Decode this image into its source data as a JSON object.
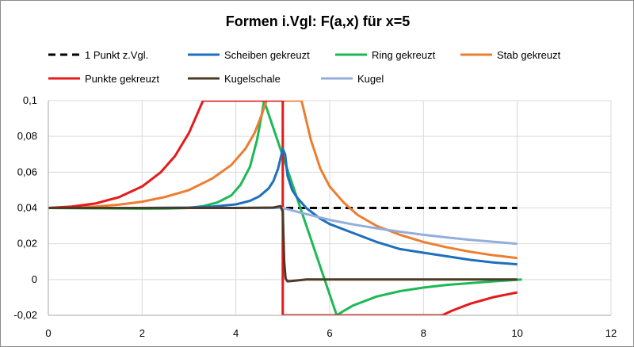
{
  "chart_data": {
    "type": "line",
    "title": "Formen i.Vgl: F(a,x)  für x=5",
    "xlabel": "",
    "ylabel": "",
    "xlim": [
      0,
      12
    ],
    "ylim": [
      -0.02,
      0.1
    ],
    "x_ticks": [
      "0",
      "2",
      "4",
      "6",
      "8",
      "10",
      "12"
    ],
    "y_ticks": [
      "-0,02",
      "0",
      "0,02",
      "0,04",
      "0,06",
      "0,08",
      "0,1"
    ],
    "grid": true,
    "legend": "top, two rows",
    "series": [
      {
        "name": "1 Punkt z.Vgl.",
        "color": "#000000",
        "dash": true,
        "points": [
          [
            0,
            0.04
          ],
          [
            10,
            0.04
          ]
        ]
      },
      {
        "name": "Scheiben gekreuzt",
        "color": "#1f6fbd",
        "dash": false,
        "points": [
          [
            0,
            0.04
          ],
          [
            1,
            0.04
          ],
          [
            2,
            0.04
          ],
          [
            3,
            0.0402
          ],
          [
            3.5,
            0.0408
          ],
          [
            4,
            0.042
          ],
          [
            4.3,
            0.044
          ],
          [
            4.5,
            0.0465
          ],
          [
            4.7,
            0.051
          ],
          [
            4.8,
            0.055
          ],
          [
            4.9,
            0.062
          ],
          [
            5.0,
            0.073
          ],
          [
            5.05,
            0.07
          ],
          [
            5.1,
            0.058
          ],
          [
            5.2,
            0.05
          ],
          [
            5.3,
            0.046
          ],
          [
            5.5,
            0.04
          ],
          [
            5.8,
            0.034
          ],
          [
            6.0,
            0.031
          ],
          [
            6.5,
            0.026
          ],
          [
            7.0,
            0.021
          ],
          [
            7.5,
            0.017
          ],
          [
            8.0,
            0.015
          ],
          [
            8.5,
            0.013
          ],
          [
            9.0,
            0.011
          ],
          [
            9.5,
            0.0095
          ],
          [
            10.0,
            0.0085
          ]
        ]
      },
      {
        "name": "Ring gekreuzt",
        "color": "#1db954",
        "dash": false,
        "points": [
          [
            0,
            0.04
          ],
          [
            1.0,
            0.0398
          ],
          [
            2.0,
            0.0396
          ],
          [
            2.5,
            0.0397
          ],
          [
            3.0,
            0.04
          ],
          [
            3.3,
            0.041
          ],
          [
            3.6,
            0.043
          ],
          [
            3.9,
            0.047
          ],
          [
            4.1,
            0.053
          ],
          [
            4.3,
            0.063
          ],
          [
            4.45,
            0.078
          ],
          [
            4.55,
            0.092
          ],
          [
            4.6,
            0.1
          ],
          [
            6.15,
            -0.02
          ],
          [
            6.3,
            -0.0175
          ],
          [
            6.5,
            -0.0145
          ],
          [
            7.0,
            -0.0095
          ],
          [
            7.5,
            -0.0065
          ],
          [
            8.0,
            -0.0045
          ],
          [
            8.5,
            -0.003
          ],
          [
            9.0,
            -0.002
          ],
          [
            9.5,
            -0.001
          ],
          [
            10.1,
            0.0
          ]
        ]
      },
      {
        "name": "Stab gekreuzt",
        "color": "#ed7d31",
        "dash": false,
        "points": [
          [
            0,
            0.04
          ],
          [
            1.0,
            0.0408
          ],
          [
            1.5,
            0.0418
          ],
          [
            2.0,
            0.0435
          ],
          [
            2.5,
            0.0462
          ],
          [
            3.0,
            0.05
          ],
          [
            3.5,
            0.0565
          ],
          [
            3.9,
            0.064
          ],
          [
            4.2,
            0.073
          ],
          [
            4.4,
            0.082
          ],
          [
            4.55,
            0.092
          ],
          [
            4.65,
            0.1
          ],
          [
            5.4,
            0.1
          ],
          [
            5.5,
            0.089
          ],
          [
            5.6,
            0.078
          ],
          [
            5.8,
            0.062
          ],
          [
            6.0,
            0.052
          ],
          [
            6.3,
            0.043
          ],
          [
            6.6,
            0.036
          ],
          [
            7.0,
            0.03
          ],
          [
            7.5,
            0.025
          ],
          [
            8.0,
            0.021
          ],
          [
            8.5,
            0.018
          ],
          [
            9.0,
            0.0155
          ],
          [
            9.5,
            0.0135
          ],
          [
            10.0,
            0.012
          ]
        ]
      },
      {
        "name": "Punkte gekreuzt",
        "color": "#e51a1a",
        "dash": false,
        "points": [
          [
            0,
            0.04
          ],
          [
            0.5,
            0.0408
          ],
          [
            1.0,
            0.0425
          ],
          [
            1.5,
            0.046
          ],
          [
            2.0,
            0.052
          ],
          [
            2.4,
            0.06
          ],
          [
            2.7,
            0.069
          ],
          [
            3.0,
            0.082
          ],
          [
            3.2,
            0.094
          ],
          [
            3.3,
            0.1
          ],
          [
            5.0,
            0.1
          ],
          [
            5.0,
            -0.02
          ],
          [
            8.4,
            -0.02
          ],
          [
            8.6,
            -0.0175
          ],
          [
            9.0,
            -0.0135
          ],
          [
            9.5,
            -0.0098
          ],
          [
            10.0,
            -0.0072
          ]
        ]
      },
      {
        "name": "Kugelschale",
        "color": "#4d3b26",
        "dash": false,
        "points": [
          [
            0,
            0.04
          ],
          [
            2,
            0.04
          ],
          [
            4,
            0.04
          ],
          [
            4.8,
            0.0402
          ],
          [
            4.95,
            0.041
          ],
          [
            5.0,
            0.038
          ],
          [
            5.03,
            0.01
          ],
          [
            5.06,
            0.0005
          ],
          [
            5.1,
            -0.001
          ],
          [
            5.2,
            -0.0008
          ],
          [
            5.5,
            0.0
          ],
          [
            6.0,
            0.0
          ],
          [
            8.0,
            0.0
          ],
          [
            10.0,
            0.0
          ]
        ]
      },
      {
        "name": "Kugel",
        "color": "#94aedb",
        "dash": false,
        "points": [
          [
            0,
            0.04
          ],
          [
            2,
            0.04
          ],
          [
            4,
            0.04
          ],
          [
            4.9,
            0.04
          ],
          [
            5.0,
            0.04
          ],
          [
            5.5,
            0.0366
          ],
          [
            6.0,
            0.0333
          ],
          [
            6.5,
            0.0308
          ],
          [
            7.0,
            0.0286
          ],
          [
            7.5,
            0.0267
          ],
          [
            8.0,
            0.025
          ],
          [
            8.5,
            0.0235
          ],
          [
            9.0,
            0.0222
          ],
          [
            9.5,
            0.0211
          ],
          [
            10.0,
            0.02
          ]
        ]
      }
    ]
  }
}
